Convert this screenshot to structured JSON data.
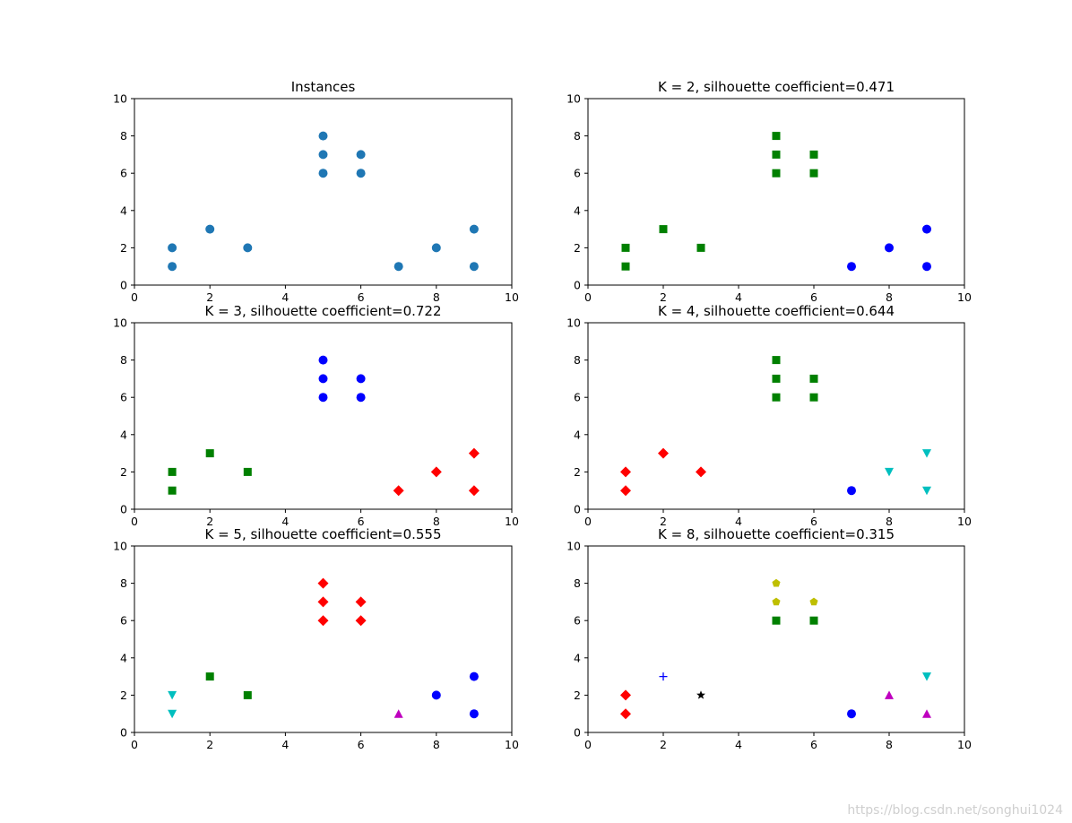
{
  "chart_data": [
    {
      "type": "scatter",
      "title": "Instances",
      "xlim": [
        0,
        10
      ],
      "ylim": [
        0,
        10
      ],
      "xticks": [
        0,
        2,
        4,
        6,
        8,
        10
      ],
      "yticks": [
        0,
        2,
        4,
        6,
        8,
        10
      ],
      "series": [
        {
          "color": "#1f77b4",
          "marker": "circle",
          "points": [
            [
              1,
              1
            ],
            [
              1,
              2
            ],
            [
              2,
              3
            ],
            [
              3,
              2
            ],
            [
              5,
              6
            ],
            [
              5,
              7
            ],
            [
              5,
              8
            ],
            [
              6,
              6
            ],
            [
              6,
              7
            ],
            [
              7,
              1
            ],
            [
              8,
              2
            ],
            [
              9,
              1
            ],
            [
              9,
              3
            ]
          ]
        }
      ]
    },
    {
      "type": "scatter",
      "title": "K = 2, silhouette coefficient=0.471",
      "xlim": [
        0,
        10
      ],
      "ylim": [
        0,
        10
      ],
      "xticks": [
        0,
        2,
        4,
        6,
        8,
        10
      ],
      "yticks": [
        0,
        2,
        4,
        6,
        8,
        10
      ],
      "series": [
        {
          "color": "#008000",
          "marker": "square",
          "points": [
            [
              1,
              1
            ],
            [
              1,
              2
            ],
            [
              2,
              3
            ],
            [
              3,
              2
            ],
            [
              5,
              6
            ],
            [
              5,
              7
            ],
            [
              5,
              8
            ],
            [
              6,
              6
            ],
            [
              6,
              7
            ]
          ]
        },
        {
          "color": "#0000ff",
          "marker": "circle",
          "points": [
            [
              7,
              1
            ],
            [
              8,
              2
            ],
            [
              9,
              1
            ],
            [
              9,
              3
            ]
          ]
        }
      ]
    },
    {
      "type": "scatter",
      "title": "K = 3, silhouette coefficient=0.722",
      "xlim": [
        0,
        10
      ],
      "ylim": [
        0,
        10
      ],
      "xticks": [
        0,
        2,
        4,
        6,
        8,
        10
      ],
      "yticks": [
        0,
        2,
        4,
        6,
        8,
        10
      ],
      "series": [
        {
          "color": "#008000",
          "marker": "square",
          "points": [
            [
              1,
              1
            ],
            [
              1,
              2
            ],
            [
              2,
              3
            ],
            [
              3,
              2
            ]
          ]
        },
        {
          "color": "#0000ff",
          "marker": "circle",
          "points": [
            [
              5,
              6
            ],
            [
              5,
              7
            ],
            [
              5,
              8
            ],
            [
              6,
              6
            ],
            [
              6,
              7
            ]
          ]
        },
        {
          "color": "#ff0000",
          "marker": "diamond",
          "points": [
            [
              7,
              1
            ],
            [
              8,
              2
            ],
            [
              9,
              1
            ],
            [
              9,
              3
            ]
          ]
        }
      ]
    },
    {
      "type": "scatter",
      "title": "K = 4, silhouette coefficient=0.644",
      "xlim": [
        0,
        10
      ],
      "ylim": [
        0,
        10
      ],
      "xticks": [
        0,
        2,
        4,
        6,
        8,
        10
      ],
      "yticks": [
        0,
        2,
        4,
        6,
        8,
        10
      ],
      "series": [
        {
          "color": "#ff0000",
          "marker": "diamond",
          "points": [
            [
              1,
              1
            ],
            [
              1,
              2
            ],
            [
              2,
              3
            ],
            [
              3,
              2
            ]
          ]
        },
        {
          "color": "#008000",
          "marker": "square",
          "points": [
            [
              5,
              6
            ],
            [
              5,
              7
            ],
            [
              5,
              8
            ],
            [
              6,
              6
            ],
            [
              6,
              7
            ]
          ]
        },
        {
          "color": "#0000ff",
          "marker": "circle",
          "points": [
            [
              7,
              1
            ]
          ]
        },
        {
          "color": "#00bfbf",
          "marker": "triangle-down",
          "points": [
            [
              8,
              2
            ],
            [
              9,
              1
            ],
            [
              9,
              3
            ]
          ]
        }
      ]
    },
    {
      "type": "scatter",
      "title": "K = 5, silhouette coefficient=0.555",
      "xlim": [
        0,
        10
      ],
      "ylim": [
        0,
        10
      ],
      "xticks": [
        0,
        2,
        4,
        6,
        8,
        10
      ],
      "yticks": [
        0,
        2,
        4,
        6,
        8,
        10
      ],
      "series": [
        {
          "color": "#00bfbf",
          "marker": "triangle-down",
          "points": [
            [
              1,
              1
            ],
            [
              1,
              2
            ]
          ]
        },
        {
          "color": "#008000",
          "marker": "square",
          "points": [
            [
              2,
              3
            ],
            [
              3,
              2
            ]
          ]
        },
        {
          "color": "#ff0000",
          "marker": "diamond",
          "points": [
            [
              5,
              6
            ],
            [
              5,
              7
            ],
            [
              5,
              8
            ],
            [
              6,
              6
            ],
            [
              6,
              7
            ]
          ]
        },
        {
          "color": "#bf00bf",
          "marker": "triangle-up",
          "points": [
            [
              7,
              1
            ]
          ]
        },
        {
          "color": "#0000ff",
          "marker": "circle",
          "points": [
            [
              8,
              2
            ],
            [
              9,
              1
            ],
            [
              9,
              3
            ]
          ]
        }
      ]
    },
    {
      "type": "scatter",
      "title": "K = 8, silhouette coefficient=0.315",
      "xlim": [
        0,
        10
      ],
      "ylim": [
        0,
        10
      ],
      "xticks": [
        0,
        2,
        4,
        6,
        8,
        10
      ],
      "yticks": [
        0,
        2,
        4,
        6,
        8,
        10
      ],
      "series": [
        {
          "color": "#ff0000",
          "marker": "diamond",
          "points": [
            [
              1,
              1
            ],
            [
              1,
              2
            ]
          ]
        },
        {
          "color": "#0000ff",
          "marker": "plus",
          "points": [
            [
              2,
              3
            ]
          ]
        },
        {
          "color": "#000000",
          "marker": "star",
          "points": [
            [
              3,
              2
            ]
          ]
        },
        {
          "color": "#bfbf00",
          "marker": "pentagon",
          "points": [
            [
              5,
              7
            ],
            [
              5,
              8
            ],
            [
              6,
              7
            ]
          ]
        },
        {
          "color": "#008000",
          "marker": "square",
          "points": [
            [
              5,
              6
            ],
            [
              6,
              6
            ]
          ]
        },
        {
          "color": "#0000ff",
          "marker": "circle",
          "points": [
            [
              7,
              1
            ]
          ]
        },
        {
          "color": "#bf00bf",
          "marker": "triangle-up",
          "points": [
            [
              8,
              2
            ],
            [
              9,
              1
            ]
          ]
        },
        {
          "color": "#00bfbf",
          "marker": "triangle-down",
          "points": [
            [
              9,
              3
            ]
          ]
        }
      ]
    }
  ],
  "watermark": "https://blog.csdn.net/songhui1024"
}
